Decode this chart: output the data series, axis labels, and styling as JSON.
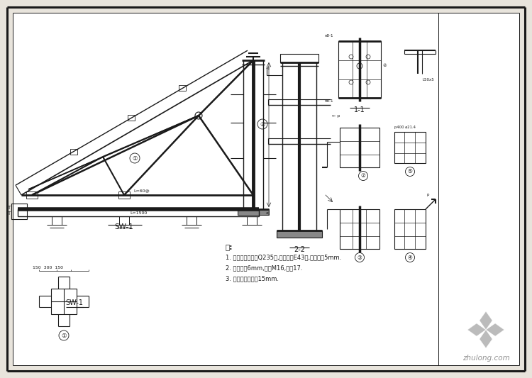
{
  "bg_color": "#e8e4dc",
  "inner_bg": "#ffffff",
  "line_color": "#1a1a1a",
  "notes_header": "注:",
  "notes": [
    "1. 钢材、焊条选用Q235钢,焊条采用E43型,焊缝高度5mm.",
    "2. 连接板厚6mm,螺栓M16,孔径17.",
    "3. 钢柱混凝土包角15mm."
  ],
  "label_SW1": "SW-1",
  "label_11": "1-1",
  "label_22": "2-2"
}
